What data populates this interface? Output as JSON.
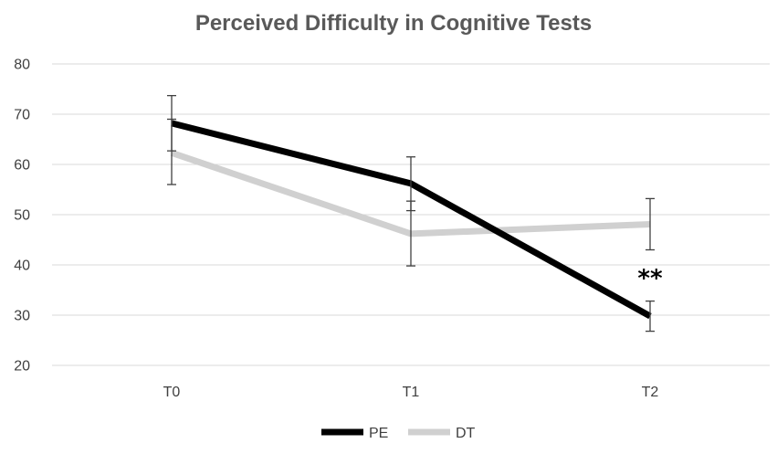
{
  "chart_data": {
    "type": "line",
    "title": "Perceived Difficulty in Cognitive Tests",
    "categories": [
      "T0",
      "T1",
      "T2"
    ],
    "ylim": [
      20,
      80
    ],
    "yticks": [
      20,
      30,
      40,
      50,
      60,
      70,
      80
    ],
    "ytick_labels": [
      "20",
      "30",
      "40",
      "50",
      "60",
      "70",
      "80"
    ],
    "xlabel": "",
    "ylabel": "",
    "grid": true,
    "legend_position": "bottom-center",
    "series": [
      {
        "name": "PE",
        "color": "#000000",
        "values": [
          68.2,
          56.2,
          29.8
        ],
        "err_low": [
          62.7,
          50.8,
          26.8
        ],
        "err_high": [
          73.7,
          61.5,
          32.8
        ]
      },
      {
        "name": "DT",
        "color": "#d0d0d0",
        "values": [
          62.3,
          46.2,
          48.1
        ],
        "err_low": [
          56.0,
          39.8,
          43.0
        ],
        "err_high": [
          69.0,
          52.7,
          53.2
        ]
      }
    ],
    "annotations": [
      {
        "text": "**",
        "category": "T2",
        "value": 37.5
      }
    ]
  }
}
